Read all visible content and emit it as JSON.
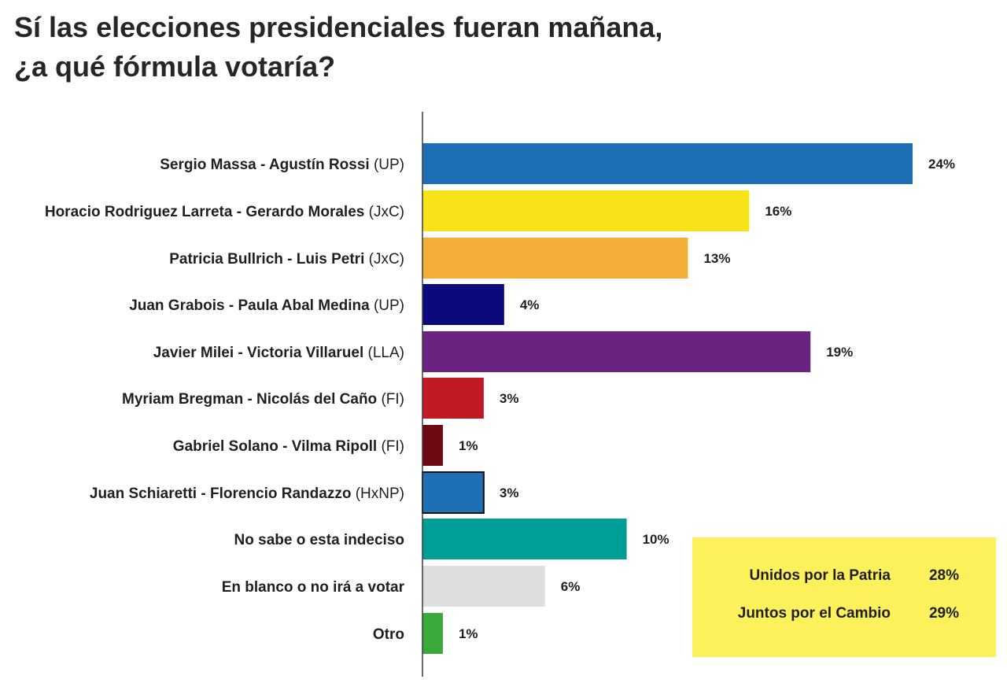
{
  "title_lines": [
    "Sí las elecciones presidenciales fueran mañana,",
    "¿a qué fórmula votaría?"
  ],
  "chart_data": {
    "type": "bar",
    "orientation": "horizontal",
    "title": "Sí las elecciones presidenciales fueran mañana, ¿a qué fórmula votaría?",
    "categories": [
      {
        "label": "Sergio Massa - Agustín Rossi",
        "party": "(UP)"
      },
      {
        "label": "Horacio Rodriguez Larreta - Gerardo Morales",
        "party": "(JxC)"
      },
      {
        "label": "Patricia Bullrich - Luis Petri",
        "party": "(JxC)"
      },
      {
        "label": "Juan Grabois - Paula Abal Medina",
        "party": "(UP)"
      },
      {
        "label": "Javier Milei - Victoria Villaruel",
        "party": "(LLA)"
      },
      {
        "label": "Myriam Bregman - Nicolás del Caño",
        "party": "(FI)"
      },
      {
        "label": "Gabriel Solano - Vilma Ripoll",
        "party": "(FI)"
      },
      {
        "label": "Juan Schiaretti - Florencio Randazzo",
        "party": "(HxNP)"
      },
      {
        "label": "No sabe o esta indeciso",
        "party": ""
      },
      {
        "label": "En blanco o no irá a votar",
        "party": ""
      },
      {
        "label": "Otro",
        "party": ""
      }
    ],
    "values": [
      24,
      16,
      13,
      4,
      19,
      3,
      1,
      3,
      10,
      6,
      1
    ],
    "value_labels": [
      "24%",
      "16%",
      "13%",
      "4%",
      "19%",
      "3%",
      "1%",
      "3%",
      "10%",
      "6%",
      "1%"
    ],
    "colors": [
      "#1f6fb5",
      "#f7e317",
      "#f2ae38",
      "#0a0a7d",
      "#6a2380",
      "#c01a22",
      "#6e0a14",
      "#1f6fb5",
      "#009e96",
      "#dedede",
      "#3aaa3a"
    ],
    "outlined": [
      false,
      false,
      false,
      false,
      false,
      false,
      false,
      true,
      false,
      false,
      false
    ],
    "xlim": [
      0,
      25
    ],
    "grid": false,
    "legend": "none"
  },
  "summary": [
    {
      "name": "Unidos por la Patria",
      "value": "28%"
    },
    {
      "name": "Juntos por el Cambio",
      "value": "29%"
    }
  ],
  "colors": {
    "summary_background": "#fdf15b"
  }
}
